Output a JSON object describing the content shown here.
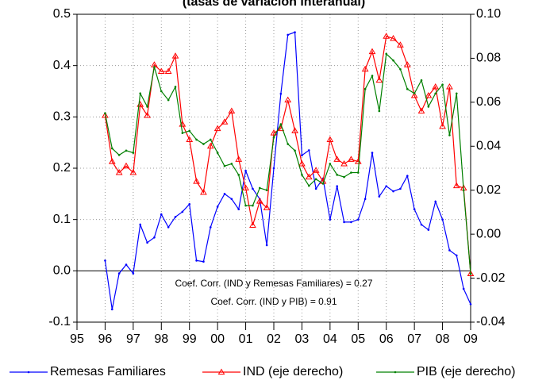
{
  "chart_data": {
    "type": "line",
    "title": "(tasas de variación interanual)",
    "x": [
      1996,
      1996.25,
      1996.5,
      1996.75,
      1997,
      1997.25,
      1997.5,
      1997.75,
      1998,
      1998.25,
      1998.5,
      1998.75,
      1999,
      1999.25,
      1999.5,
      1999.75,
      2000,
      2000.25,
      2000.5,
      2000.75,
      2001,
      2001.25,
      2001.5,
      2001.75,
      2002,
      2002.25,
      2002.5,
      2002.75,
      2003,
      2003.25,
      2003.5,
      2003.75,
      2004,
      2004.25,
      2004.5,
      2004.75,
      2005,
      2005.25,
      2005.5,
      2005.75,
      2006,
      2006.25,
      2006.5,
      2006.75,
      2007,
      2007.25,
      2007.5,
      2007.75,
      2008,
      2008.25,
      2008.5,
      2008.75,
      2009
    ],
    "series": [
      {
        "name": "Remesas Familiares",
        "color": "#0000ff",
        "axis": "y",
        "marker": "dot",
        "values": [
          0.02,
          -0.075,
          -0.005,
          0.012,
          -0.005,
          0.09,
          0.055,
          0.065,
          0.11,
          0.085,
          0.105,
          0.115,
          0.13,
          0.02,
          0.018,
          0.085,
          0.125,
          0.15,
          0.14,
          0.12,
          0.195,
          0.16,
          0.14,
          0.05,
          0.2,
          0.345,
          0.46,
          0.465,
          0.225,
          0.235,
          0.16,
          0.18,
          0.1,
          0.165,
          0.095,
          0.095,
          0.1,
          0.14,
          0.23,
          0.145,
          0.165,
          0.155,
          0.16,
          0.185,
          0.12,
          0.09,
          0.08,
          0.135,
          0.1,
          0.04,
          0.03,
          -0.035,
          -0.065
        ]
      },
      {
        "name": "IND (eje derecho)",
        "color": "#ff0000",
        "axis": "y2",
        "marker": "triangle",
        "values": [
          0.054,
          0.033,
          0.028,
          0.031,
          0.028,
          0.059,
          0.054,
          0.077,
          0.074,
          0.074,
          0.081,
          0.05,
          0.043,
          0.024,
          0.019,
          0.04,
          0.048,
          0.051,
          0.056,
          0.034,
          0.021,
          0.004,
          0.015,
          0.012,
          0.046,
          0.048,
          0.061,
          0.047,
          0.032,
          0.026,
          0.029,
          0.024,
          0.043,
          0.034,
          0.032,
          0.034,
          0.033,
          0.075,
          0.083,
          0.07,
          0.09,
          0.089,
          0.086,
          0.077,
          0.063,
          0.056,
          0.063,
          0.067,
          0.049,
          0.067,
          0.022,
          0.021,
          -0.018
        ]
      },
      {
        "name": "PIB (eje derecho)",
        "color": "#008000",
        "axis": "y2",
        "marker": "dot",
        "values": [
          0.055,
          0.039,
          0.036,
          0.038,
          0.037,
          0.064,
          0.058,
          0.076,
          0.065,
          0.061,
          0.067,
          0.046,
          0.047,
          0.043,
          0.041,
          0.043,
          0.037,
          0.031,
          0.032,
          0.027,
          0.013,
          0.013,
          0.021,
          0.02,
          0.044,
          0.05,
          0.041,
          0.038,
          0.027,
          0.022,
          0.025,
          0.023,
          0.032,
          0.027,
          0.026,
          0.028,
          0.028,
          0.066,
          0.072,
          0.056,
          0.082,
          0.079,
          0.075,
          0.066,
          0.064,
          0.07,
          0.058,
          0.064,
          0.068,
          0.045,
          0.064,
          0.02,
          -0.018
        ]
      }
    ],
    "xlim": [
      1995,
      2009
    ],
    "xticks": [
      {
        "value": 1995,
        "label": "95"
      },
      {
        "value": 1996,
        "label": "96"
      },
      {
        "value": 1997,
        "label": "97"
      },
      {
        "value": 1998,
        "label": "98"
      },
      {
        "value": 1999,
        "label": "99"
      },
      {
        "value": 2000,
        "label": "00"
      },
      {
        "value": 2001,
        "label": "01"
      },
      {
        "value": 2002,
        "label": "02"
      },
      {
        "value": 2003,
        "label": "03"
      },
      {
        "value": 2004,
        "label": "04"
      },
      {
        "value": 2005,
        "label": "05"
      },
      {
        "value": 2006,
        "label": "06"
      },
      {
        "value": 2007,
        "label": "07"
      },
      {
        "value": 2008,
        "label": "08"
      },
      {
        "value": 2009,
        "label": "09"
      }
    ],
    "ylim": [
      -0.1,
      0.5
    ],
    "yticks": [
      -0.1,
      {
        "value": 0,
        "label": "0.0"
      },
      0.1,
      0.2,
      0.3,
      0.4,
      0.5
    ],
    "y2lim": [
      -0.04,
      0.1
    ],
    "y2ticks": [
      {
        "value": -0.04,
        "label": "-0.04"
      },
      {
        "value": -0.02,
        "label": "-0.02"
      },
      {
        "value": 0,
        "label": "0.00"
      },
      {
        "value": 0.02,
        "label": "0.02"
      },
      {
        "value": 0.04,
        "label": "0.04"
      },
      {
        "value": 0.06,
        "label": "0.06"
      },
      {
        "value": 0.08,
        "label": "0.08"
      },
      {
        "value": 0.1,
        "label": "0.10"
      }
    ],
    "grid": true,
    "annotations": [
      "Coef. Corr. (IND y Remesas Familiares) = 0.27",
      "Coef. Corr. (IND y PIB) = 0.91"
    ]
  }
}
